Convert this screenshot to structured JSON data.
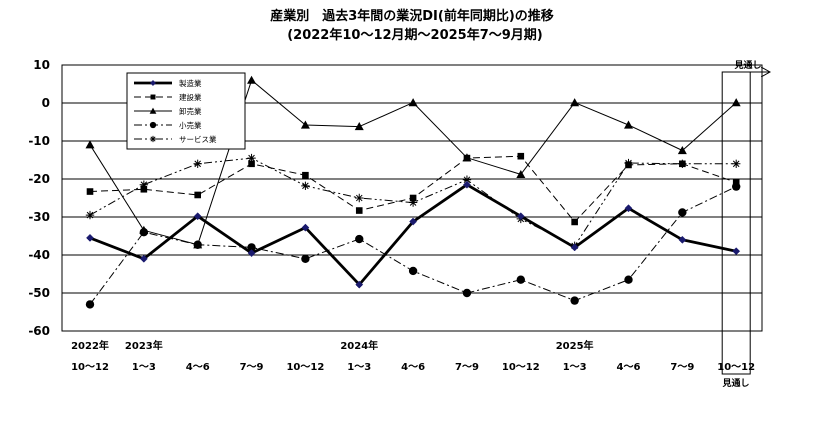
{
  "chart_data": {
    "type": "line",
    "title": "産業別　過去3年間の業況DI(前年同期比)の推移",
    "subtitle": "(2022年10～12月期～2025年7～9月期)",
    "xlabel": "",
    "ylabel": "",
    "ylim": [
      -60,
      10
    ],
    "yticks": [
      10,
      0,
      -10,
      -20,
      -30,
      -40,
      -50,
      -60
    ],
    "grid": true,
    "legend_position": "top-left",
    "categories": [
      "10～12",
      "1～3",
      "4～6",
      "7～9",
      "10～12",
      "1～3",
      "4～6",
      "7～9",
      "10～12",
      "1～3",
      "4～6",
      "7～9",
      "10～12"
    ],
    "year_labels": [
      {
        "index": 0,
        "label": "2022年"
      },
      {
        "index": 1,
        "label": "2023年"
      },
      {
        "index": 5,
        "label": "2024年"
      },
      {
        "index": 9,
        "label": "2025年"
      }
    ],
    "forecast_label": "見通し",
    "series": [
      {
        "name": "製造業",
        "style": "thick-solid",
        "marker": "diamond",
        "values": [
          -35.5,
          -41.0,
          -29.8,
          -39.5,
          -32.8,
          -47.8,
          -31.2,
          -21.5,
          -29.8,
          -38.0,
          -27.7,
          -36.0,
          -39.0
        ]
      },
      {
        "name": "建設業",
        "style": "dashed",
        "marker": "square",
        "values": [
          -23.3,
          -22.7,
          -24.2,
          -16.0,
          -19.0,
          -28.3,
          -25.0,
          -14.5,
          -14.0,
          -31.3,
          -16.3,
          -16.0,
          -20.9
        ]
      },
      {
        "name": "卸売業",
        "style": "thin-solid",
        "marker": "triangle",
        "values": [
          -11.0,
          -33.5,
          -37.3,
          6.0,
          -5.8,
          -6.2,
          0.1,
          -14.4,
          -18.8,
          0.1,
          -5.8,
          -12.5,
          0.1
        ]
      },
      {
        "name": "小売業",
        "style": "dash-dot",
        "marker": "circle",
        "values": [
          -53.0,
          -34.0,
          -37.3,
          -38.0,
          -41.0,
          -35.8,
          -44.2,
          -50.0,
          -46.5,
          -52.0,
          -46.5,
          -28.8,
          -22.0
        ]
      },
      {
        "name": "サービス業",
        "style": "dash-dot-dot",
        "marker": "asterisk",
        "values": [
          -29.5,
          -21.5,
          -16.0,
          -14.5,
          -21.8,
          -25.0,
          -26.2,
          -20.2,
          -30.5,
          -37.6,
          -15.8,
          -16.0,
          -16.0
        ]
      }
    ]
  }
}
